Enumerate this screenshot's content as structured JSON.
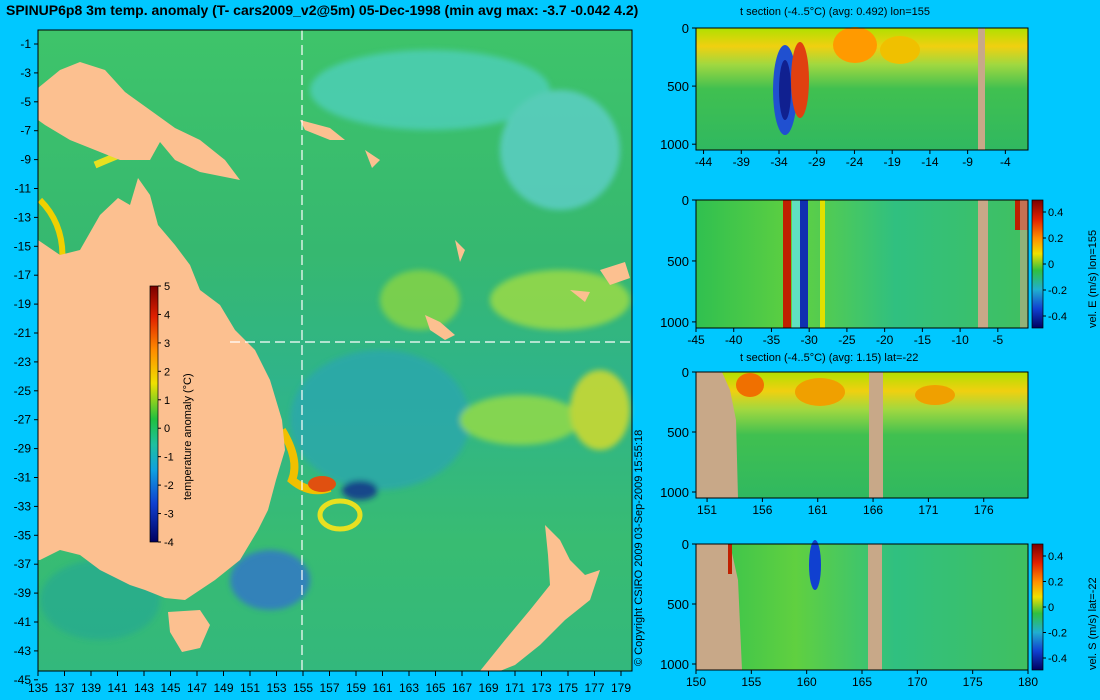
{
  "title": "SPINUP6p8 3m temp. anomaly (T- cars2009_v2@5m) 05-Dec-1998 (min avg max: -3.7 -0.042 4.2)",
  "copyright": "© Copyright CSIRO 2009   03-Sep-2009 15:55:18",
  "map": {
    "lat_labels": [
      "-1",
      "-3",
      "-5",
      "-7",
      "-9",
      "-11",
      "-13",
      "-15",
      "-17",
      "-19",
      "-21",
      "-23",
      "-25",
      "-27",
      "-29",
      "-31",
      "-33",
      "-35",
      "-37",
      "-39",
      "-41",
      "-43",
      "-45"
    ],
    "lon_labels": [
      "135",
      "137",
      "139",
      "141",
      "143",
      "145",
      "147",
      "149",
      "151",
      "153",
      "155",
      "157",
      "159",
      "161",
      "163",
      "165",
      "167",
      "169",
      "171",
      "173",
      "175",
      "177",
      "179"
    ],
    "colorbar": {
      "label": "temperature anomaly (°C)",
      "ticks": [
        "5",
        "4",
        "3",
        "2",
        "1",
        "0",
        "-1",
        "-2",
        "-3",
        "-4"
      ]
    },
    "section_lon": 155,
    "section_lat": -22
  },
  "panels": [
    {
      "id": "p1",
      "title": "t section (-4..5°C) (avg: 0.492) lon=155",
      "y_ticks": [
        "0",
        "500",
        "1000"
      ],
      "x_ticks": [
        "-44",
        "-39",
        "-34",
        "-29",
        "-24",
        "-19",
        "-14",
        "-9",
        "-4"
      ],
      "x_range": [
        -45,
        -1
      ],
      "colorbar": null
    },
    {
      "id": "p2",
      "title": "",
      "y_ticks": [
        "0",
        "500",
        "1000"
      ],
      "x_ticks": [
        "-45",
        "-40",
        "-35",
        "-30",
        "-25",
        "-20",
        "-15",
        "-10",
        "-5"
      ],
      "x_range": [
        -45,
        -1
      ],
      "colorbar": {
        "label": "vel. E (m/s) lon=155",
        "ticks": [
          "0.4",
          "0.2",
          "0",
          "-0.2",
          "-0.4"
        ]
      }
    },
    {
      "id": "p3",
      "title": "t section (-4..5°C) (avg: 1.15) lat=-22",
      "y_ticks": [
        "0",
        "500",
        "1000"
      ],
      "x_ticks": [
        "151",
        "156",
        "161",
        "166",
        "171",
        "176"
      ],
      "x_range": [
        150,
        180
      ],
      "colorbar": null
    },
    {
      "id": "p4",
      "title": "",
      "y_ticks": [
        "0",
        "500",
        "1000"
      ],
      "x_ticks": [
        "150",
        "155",
        "160",
        "165",
        "170",
        "175",
        "180"
      ],
      "x_range": [
        150,
        180
      ],
      "colorbar": {
        "label": "vel. S (m/s) lat=-22",
        "ticks": [
          "0.4",
          "0.2",
          "0",
          "-0.2",
          "-0.4"
        ]
      }
    }
  ]
}
